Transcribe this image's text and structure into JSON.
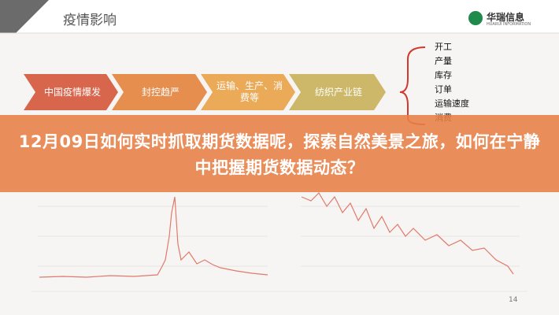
{
  "header": {
    "title": "疫情影响",
    "logo_name": "华瑞信息",
    "logo_sub": "HUARUI INFORMATION"
  },
  "flow": {
    "steps": [
      "中国疫情爆发",
      "封控趋严",
      "运输、生产、消费等",
      "纺织产业链"
    ],
    "impacts": [
      "开工",
      "产量",
      "库存",
      "订单",
      "运输速度",
      "消费"
    ]
  },
  "headline": "12月09日如何实时抓取期货数据呢，探索自然美景之旅，如何在宁静中把握期货数据动态？",
  "page_number": "14"
}
